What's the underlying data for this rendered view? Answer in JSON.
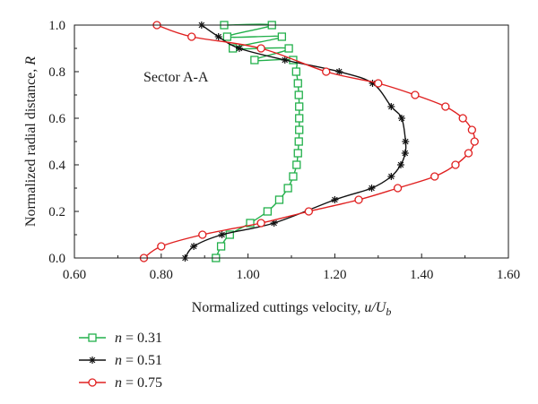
{
  "chart_data": {
    "type": "line",
    "xlabel": "Normalized cuttings velocity, ",
    "xlabel_math": "u/U",
    "xlabel_sub": "b",
    "ylabel": "Normalized radial distance, ",
    "ylabel_math": "R",
    "xlim": [
      0.6,
      1.6
    ],
    "ylim": [
      0.0,
      1.0
    ],
    "x_ticks": [
      "0.60",
      "0.80",
      "1.00",
      "1.20",
      "1.40",
      "1.60"
    ],
    "y_ticks": [
      "0.0",
      "0.2",
      "0.4",
      "0.6",
      "0.8",
      "1.0"
    ],
    "annotation": "Sector A-A",
    "grid": false,
    "legend_placement": "below-left",
    "series": [
      {
        "name": "n = 0.31",
        "legend_var": "n",
        "legend_value": " = 0.31",
        "color": "#22b04b",
        "marker": "square",
        "x": [
          0.926,
          0.938,
          0.958,
          1.005,
          1.045,
          1.072,
          1.092,
          1.104,
          1.112,
          1.115,
          1.117,
          1.118,
          1.118,
          1.118,
          1.117,
          1.115,
          1.111,
          1.104,
          1.094,
          1.078,
          1.055,
          1.015,
          0.965,
          0.952,
          0.945
        ],
        "y": [
          0.0,
          0.05,
          0.1,
          0.15,
          0.2,
          0.25,
          0.3,
          0.35,
          0.4,
          0.45,
          0.5,
          0.55,
          0.6,
          0.65,
          0.7,
          0.75,
          0.8,
          0.85,
          0.9,
          0.95,
          1.0,
          0.85,
          0.9,
          0.95,
          1.0
        ]
      },
      {
        "name": "n = 0.51",
        "legend_var": "n",
        "legend_value": " = 0.51",
        "color": "#111111",
        "marker": "asterisk",
        "x": [
          0.855,
          0.875,
          0.94,
          1.06,
          1.2,
          1.285,
          1.33,
          1.352,
          1.362,
          1.363,
          1.354,
          1.33,
          1.287,
          1.21,
          1.085,
          0.98,
          0.932,
          0.893
        ],
        "y": [
          0.0,
          0.05,
          0.1,
          0.15,
          0.25,
          0.3,
          0.35,
          0.4,
          0.45,
          0.5,
          0.6,
          0.65,
          0.75,
          0.8,
          0.85,
          0.9,
          0.95,
          1.0
        ]
      },
      {
        "name": "n = 0.75",
        "legend_var": "n",
        "legend_value": " = 0.75",
        "color": "#e02020",
        "marker": "circle",
        "x": [
          0.76,
          0.8,
          0.895,
          1.03,
          1.14,
          1.255,
          1.345,
          1.43,
          1.478,
          1.508,
          1.522,
          1.516,
          1.495,
          1.455,
          1.385,
          1.3,
          1.18,
          1.03,
          0.87,
          0.79
        ],
        "y": [
          0.0,
          0.05,
          0.1,
          0.15,
          0.2,
          0.25,
          0.3,
          0.35,
          0.4,
          0.45,
          0.5,
          0.55,
          0.6,
          0.65,
          0.7,
          0.75,
          0.8,
          0.9,
          0.95,
          1.0
        ]
      }
    ]
  }
}
